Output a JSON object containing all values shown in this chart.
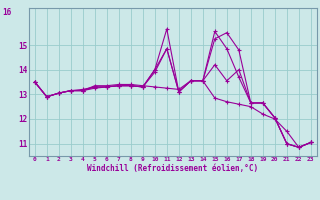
{
  "xlabel": "Windchill (Refroidissement éolien,°C)",
  "background_color": "#cce8e8",
  "line_color": "#990099",
  "grid_color": "#99cccc",
  "x_values": [
    0,
    1,
    2,
    3,
    4,
    5,
    6,
    7,
    8,
    9,
    10,
    11,
    12,
    13,
    14,
    15,
    16,
    17,
    18,
    19,
    20,
    21,
    22,
    23
  ],
  "series": [
    [
      13.5,
      12.9,
      13.05,
      13.15,
      13.15,
      13.35,
      13.35,
      13.4,
      13.4,
      13.35,
      13.3,
      13.25,
      13.2,
      13.55,
      13.55,
      12.85,
      12.7,
      12.6,
      12.5,
      12.2,
      12.0,
      11.5,
      10.85,
      11.05
    ],
    [
      13.5,
      12.9,
      13.05,
      13.15,
      13.2,
      13.3,
      13.3,
      13.35,
      13.35,
      13.3,
      14.0,
      15.65,
      13.1,
      13.55,
      13.55,
      15.55,
      14.85,
      13.7,
      12.65,
      12.65,
      12.05,
      11.0,
      10.85,
      11.05
    ],
    [
      13.5,
      12.9,
      13.05,
      13.15,
      13.15,
      13.3,
      13.3,
      13.35,
      13.35,
      13.3,
      14.0,
      14.85,
      13.1,
      13.55,
      13.55,
      15.25,
      15.5,
      14.8,
      12.65,
      12.65,
      12.05,
      11.0,
      10.85,
      11.05
    ],
    [
      13.5,
      12.9,
      13.05,
      13.15,
      13.15,
      13.25,
      13.3,
      13.35,
      13.35,
      13.3,
      13.9,
      14.85,
      13.1,
      13.55,
      13.55,
      14.2,
      13.55,
      14.0,
      12.65,
      12.65,
      12.05,
      11.0,
      10.85,
      11.05
    ]
  ],
  "ylim": [
    10.5,
    16.5
  ],
  "xlim": [
    -0.5,
    23.5
  ],
  "yticks": [
    11,
    12,
    13,
    14,
    15
  ],
  "ytick_top": 16,
  "marker": "+",
  "markersize": 3,
  "linewidth": 0.8
}
